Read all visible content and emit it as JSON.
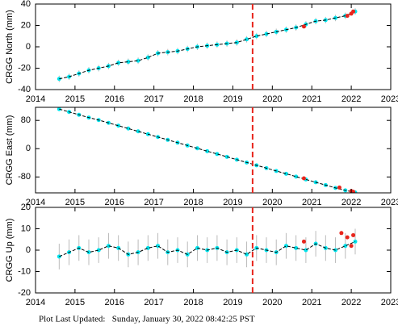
{
  "chart_data": [
    {
      "type": "scatter",
      "ylabel": "CRGG North (mm)",
      "xlim": [
        2014,
        2023
      ],
      "ylim": [
        -40,
        40
      ],
      "xticks": [
        2014,
        2015,
        2016,
        2017,
        2018,
        2019,
        2020,
        2021,
        2022,
        2023
      ],
      "yticks": [
        -40,
        -20,
        0,
        20,
        40
      ],
      "error": 3,
      "vline": {
        "value": 2019.5,
        "color": "#e8251c"
      },
      "x": [
        2014.6,
        2014.85,
        2015.1,
        2015.35,
        2015.6,
        2015.85,
        2016.1,
        2016.35,
        2016.6,
        2016.85,
        2017.1,
        2017.35,
        2017.6,
        2017.85,
        2018.1,
        2018.35,
        2018.6,
        2018.85,
        2019.1,
        2019.35,
        2019.6,
        2019.85,
        2020.1,
        2020.35,
        2020.6,
        2020.85,
        2021.1,
        2021.35,
        2021.6,
        2021.85,
        2022.1
      ],
      "series": [
        {
          "style": "points",
          "color": "#00e5ee",
          "values": [
            -30,
            -28,
            -25,
            -22,
            -20,
            -18,
            -15,
            -14,
            -13,
            -10,
            -6,
            -5,
            -4,
            -2,
            0,
            1,
            2,
            3,
            4,
            7,
            10,
            12,
            14,
            16,
            18,
            21,
            24,
            25,
            27,
            29,
            33
          ]
        },
        {
          "style": "dashed-line",
          "color": "#000000",
          "values": [
            -30,
            -28,
            -25,
            -22,
            -20,
            -18,
            -15,
            -14,
            -13,
            -10,
            -6,
            -5,
            -4,
            -2,
            0,
            1,
            2,
            3,
            4,
            7,
            10,
            12,
            14,
            16,
            18,
            21,
            24,
            25,
            27,
            29,
            33
          ]
        },
        {
          "style": "points",
          "color": "#e8251c",
          "x": [
            2020.8,
            2021.9,
            2022.0,
            2022.05
          ],
          "values": [
            19,
            29,
            31,
            33
          ]
        }
      ]
    },
    {
      "type": "scatter",
      "ylabel": "CRGG East (mm)",
      "xlim": [
        2014,
        2023
      ],
      "ylim": [
        -125,
        117
      ],
      "xticks": [
        2014,
        2015,
        2016,
        2017,
        2018,
        2019,
        2020,
        2021,
        2022,
        2023
      ],
      "yticks": [
        -80,
        0,
        80
      ],
      "error": 3,
      "vline": {
        "value": 2019.5,
        "color": "#e8251c"
      },
      "x": [
        2014.6,
        2014.85,
        2015.1,
        2015.35,
        2015.6,
        2015.85,
        2016.1,
        2016.35,
        2016.6,
        2016.85,
        2017.1,
        2017.35,
        2017.6,
        2017.85,
        2018.1,
        2018.35,
        2018.6,
        2018.85,
        2019.1,
        2019.35,
        2019.6,
        2019.85,
        2020.1,
        2020.35,
        2020.6,
        2020.85,
        2021.1,
        2021.35,
        2021.6,
        2021.85,
        2022.1
      ],
      "series": [
        {
          "style": "points",
          "color": "#00e5ee",
          "values": [
            112,
            104,
            96,
            88,
            81,
            73,
            65,
            57,
            49,
            41,
            33,
            25,
            17,
            9,
            1,
            -7,
            -15,
            -23,
            -31,
            -39,
            -47,
            -55,
            -63,
            -71,
            -79,
            -87,
            -95,
            -103,
            -111,
            -118,
            -124
          ]
        },
        {
          "style": "dashed-line",
          "color": "#000000",
          "values": [
            112,
            104,
            96,
            88,
            81,
            73,
            65,
            57,
            49,
            41,
            33,
            25,
            17,
            9,
            1,
            -7,
            -15,
            -23,
            -31,
            -39,
            -47,
            -55,
            -63,
            -71,
            -79,
            -87,
            -95,
            -103,
            -111,
            -118,
            -124
          ]
        },
        {
          "style": "points",
          "color": "#e8251c",
          "x": [
            2020.8,
            2021.7,
            2022.0,
            2022.05
          ],
          "values": [
            -84,
            -110,
            -120,
            -122
          ]
        }
      ]
    },
    {
      "type": "scatter",
      "ylabel": "CRGG Up (mm)",
      "xlim": [
        2014,
        2023
      ],
      "ylim": [
        -20,
        20
      ],
      "xticks": [
        2014,
        2015,
        2016,
        2017,
        2018,
        2019,
        2020,
        2021,
        2022,
        2023
      ],
      "yticks": [
        -20,
        -10,
        0,
        10,
        20
      ],
      "error": 6,
      "vline": {
        "value": 2019.5,
        "color": "#e8251c"
      },
      "x": [
        2014.6,
        2014.85,
        2015.1,
        2015.35,
        2015.6,
        2015.85,
        2016.1,
        2016.35,
        2016.6,
        2016.85,
        2017.1,
        2017.35,
        2017.6,
        2017.85,
        2018.1,
        2018.35,
        2018.6,
        2018.85,
        2019.1,
        2019.35,
        2019.6,
        2019.85,
        2020.1,
        2020.35,
        2020.6,
        2020.85,
        2021.1,
        2021.35,
        2021.6,
        2021.85,
        2022.1
      ],
      "series": [
        {
          "style": "points",
          "color": "#00e5ee",
          "values": [
            -3,
            -1,
            1,
            -1,
            0,
            2,
            1,
            -2,
            -1,
            1,
            2,
            -1,
            0,
            -2,
            1,
            0,
            1,
            -1,
            0,
            -2,
            1,
            0,
            -1,
            2,
            1,
            0,
            3,
            1,
            0,
            2,
            4
          ]
        },
        {
          "style": "dashed-line",
          "color": "#000000",
          "values": [
            -3,
            -1,
            1,
            -1,
            0,
            2,
            1,
            -2,
            -1,
            1,
            2,
            -1,
            0,
            -2,
            1,
            0,
            1,
            -1,
            0,
            -2,
            1,
            0,
            -1,
            2,
            1,
            0,
            3,
            1,
            0,
            2,
            4
          ]
        },
        {
          "style": "points",
          "color": "#e8251c",
          "x": [
            2020.8,
            2021.75,
            2021.9,
            2022.0,
            2022.05
          ],
          "values": [
            4,
            8,
            6,
            2,
            7
          ]
        }
      ]
    }
  ],
  "footer": "Plot Last Updated:   Sunday, January 30, 2022 08:42:25 PST"
}
